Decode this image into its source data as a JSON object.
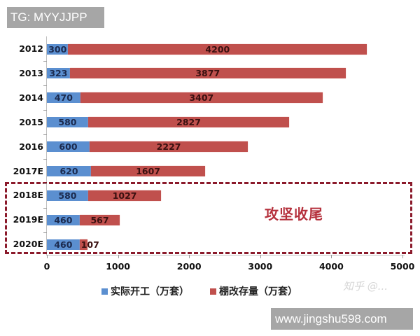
{
  "watermarks": {
    "top_left": "TG: MYYJJPP",
    "bottom_right": "www.jingshu598.com",
    "zhihu": "知乎 @..."
  },
  "colors": {
    "actual_start": "#5b8fd0",
    "stock": "#c0504d",
    "highlight_box": "#8b1a2b",
    "callout_text": "#b5303c"
  },
  "callout": "攻坚收尾",
  "legend": {
    "items": [
      {
        "label": "实际开工（万套）",
        "color": "#5b8fd0"
      },
      {
        "label": "棚改存量（万套）",
        "color": "#c0504d"
      }
    ]
  },
  "x_axis": {
    "ticks": [
      "0",
      "1000",
      "2000",
      "3000",
      "4000",
      "5000"
    ]
  },
  "rows": [
    {
      "label": "2012",
      "actual": "300",
      "stock": "4200"
    },
    {
      "label": "2013",
      "actual": "323",
      "stock": "3877"
    },
    {
      "label": "2014",
      "actual": "470",
      "stock": "3407"
    },
    {
      "label": "2015",
      "actual": "580",
      "stock": "2827"
    },
    {
      "label": "2016",
      "actual": "600",
      "stock": "2227"
    },
    {
      "label": "2017E",
      "actual": "620",
      "stock": "1607"
    },
    {
      "label": "2018E",
      "actual": "580",
      "stock": "1027"
    },
    {
      "label": "2019E",
      "actual": "460",
      "stock": "567"
    },
    {
      "label": "2020E",
      "actual": "460",
      "stock": "107"
    }
  ],
  "chart_data": {
    "type": "bar",
    "orientation": "horizontal",
    "stacked": true,
    "title": "",
    "xlabel": "",
    "ylabel": "",
    "xlim": [
      0,
      5000
    ],
    "x_ticks": [
      0,
      1000,
      2000,
      3000,
      4000,
      5000
    ],
    "categories": [
      "2012",
      "2013",
      "2014",
      "2015",
      "2016",
      "2017E",
      "2018E",
      "2019E",
      "2020E"
    ],
    "series": [
      {
        "name": "实际开工（万套）",
        "color": "#5b8fd0",
        "values": [
          300,
          323,
          470,
          580,
          600,
          620,
          580,
          460,
          460
        ]
      },
      {
        "name": "棚改存量（万套）",
        "color": "#c0504d",
        "values": [
          4200,
          3877,
          3407,
          2827,
          2227,
          1607,
          1027,
          567,
          107
        ]
      }
    ],
    "annotations": [
      {
        "text": "攻坚收尾",
        "type": "dashed-box",
        "covers_categories": [
          "2018E",
          "2019E",
          "2020E"
        ]
      }
    ],
    "legend_position": "bottom",
    "grid": false,
    "data_labels": true
  }
}
